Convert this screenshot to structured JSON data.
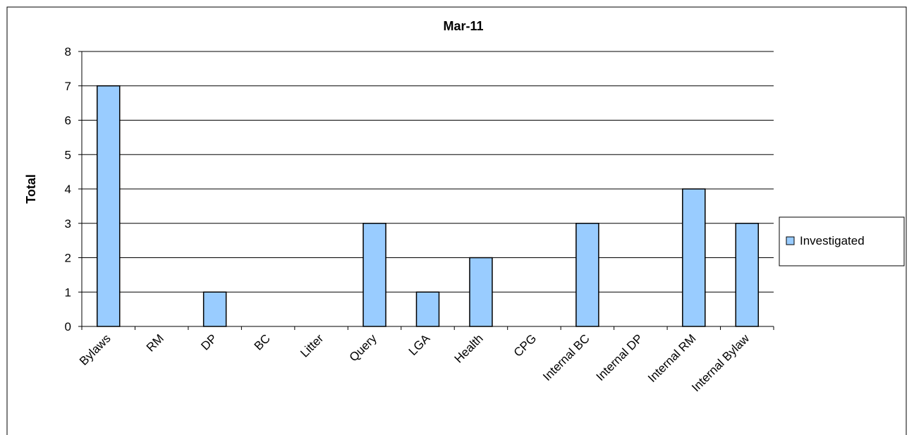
{
  "colors": {
    "bar_fill": "#99ccff",
    "bar_stroke": "#000000",
    "gridline": "#000000"
  },
  "chart_data": {
    "type": "bar",
    "title": "Mar-11",
    "xlabel": "",
    "ylabel": "Total",
    "ylim": [
      0,
      8
    ],
    "yticks": [
      "0",
      "1",
      "2",
      "3",
      "4",
      "5",
      "6",
      "7",
      "8"
    ],
    "grid": true,
    "legend_position": "right",
    "categories": [
      "Bylaws",
      "RM",
      "DP",
      "BC",
      "Litter",
      "Query",
      "LGA",
      "Health",
      "CPG",
      "Internal BC",
      "Internal DP",
      "Internal RM",
      "Internal Bylaw"
    ],
    "series": [
      {
        "name": "Investigated",
        "values": [
          7,
          0,
          1,
          0,
          0,
          3,
          1,
          2,
          0,
          3,
          0,
          4,
          3
        ]
      }
    ]
  }
}
